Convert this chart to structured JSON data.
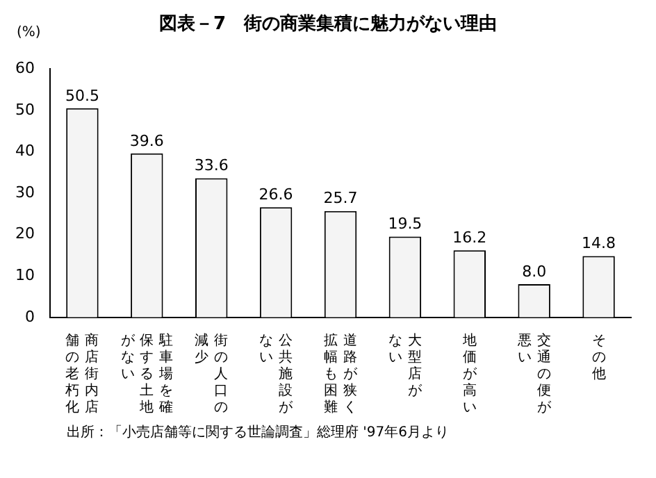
{
  "chart_data": {
    "type": "bar",
    "title": "図表－7　街の商業集積に魅力がない理由",
    "ylabel": "(%)",
    "categories": [
      "商店街内店舗の老朽化",
      "駐車場を確保する土地がない",
      "街の人口の減少",
      "公共施設がない",
      "道路が狭く拡幅も困難",
      "大型店がない",
      "地価が高い",
      "交通の便が悪い",
      "その他"
    ],
    "values": [
      50.5,
      39.6,
      33.6,
      26.6,
      25.7,
      19.5,
      16.2,
      8.0,
      14.8
    ],
    "value_labels": [
      "50.5",
      "39.6",
      "33.6",
      "26.6",
      "25.7",
      "19.5",
      "16.2",
      "8.0",
      "14.8"
    ],
    "color": "#f4f4f4",
    "ylim": [
      0,
      60
    ],
    "yticks": [
      0,
      10,
      20,
      30,
      40,
      50,
      60
    ],
    "grid": false,
    "annotations": [
      "出所：「小売店舗等に関する世論調査」総理府 '97年6月より"
    ]
  }
}
